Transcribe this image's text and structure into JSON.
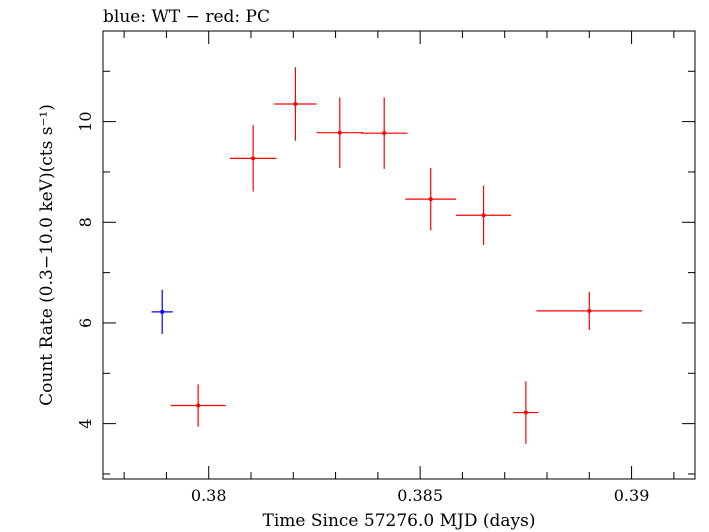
{
  "chart_data": {
    "type": "scatter",
    "title": "blue: WT − red: PC",
    "xlabel": "Time Since 57276.0 MJD (days)",
    "ylabel": "Count Rate (0.3−10.0 keV)(cts s⁻¹)",
    "xlim": [
      0.3775,
      0.3915
    ],
    "ylim": [
      2.9,
      11.8
    ],
    "x_ticks": [
      "0.38",
      "0.385",
      "0.39"
    ],
    "y_ticks": [
      "4",
      "6",
      "8",
      "10"
    ],
    "grid": false,
    "legend": "none",
    "series": [
      {
        "color": "#0000ff",
        "points": [
          {
            "x": 0.3789,
            "xerr": 0.00025,
            "y": 6.22,
            "yerr": 0.44
          }
        ]
      },
      {
        "color": "#ff0000",
        "points": [
          {
            "x": 0.37975,
            "xerr": 0.00065,
            "y": 4.36,
            "yerr": 0.42
          },
          {
            "x": 0.38105,
            "xerr": 0.00055,
            "y": 9.27,
            "yerr": 0.66
          },
          {
            "x": 0.38205,
            "xerr": 0.0005,
            "y": 10.35,
            "yerr": 0.73
          },
          {
            "x": 0.3831,
            "xerr": 0.00055,
            "y": 9.78,
            "yerr": 0.7
          },
          {
            "x": 0.38415,
            "xerr": 0.00055,
            "y": 9.77,
            "yerr": 0.71
          },
          {
            "x": 0.38525,
            "xerr": 0.0006,
            "y": 8.46,
            "yerr": 0.62
          },
          {
            "x": 0.3865,
            "xerr": 0.00065,
            "y": 8.14,
            "yerr": 0.59
          },
          {
            "x": 0.3875,
            "xerr": 0.0003,
            "y": 4.22,
            "yerr": 0.62
          },
          {
            "x": 0.389,
            "xerr": 0.00125,
            "y": 6.24,
            "yerr": 0.38
          }
        ]
      }
    ]
  }
}
